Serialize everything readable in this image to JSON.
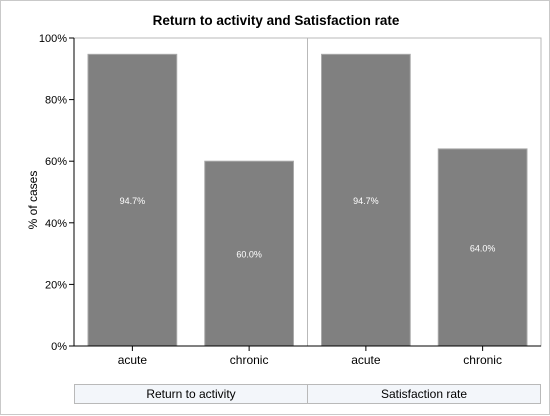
{
  "chart_data": {
    "type": "bar",
    "title": "Return to activity and Satisfaction rate",
    "ylabel": "% of cases",
    "xlabel": "",
    "ylim": [
      0,
      100
    ],
    "yticks": [
      "0%",
      "20%",
      "40%",
      "60%",
      "80%",
      "100%"
    ],
    "groups": [
      {
        "name": "Return to activity",
        "categories": [
          "acute",
          "chronic"
        ],
        "values": [
          94.7,
          60.0
        ],
        "labels": [
          "94.7%",
          "60.0%"
        ]
      },
      {
        "name": "Satisfaction rate",
        "categories": [
          "acute",
          "chronic"
        ],
        "values": [
          94.7,
          64.0
        ],
        "labels": [
          "94.7%",
          "64.0%"
        ]
      }
    ],
    "colors": {
      "bar": "#808080",
      "bar_edge": "#a9a9a9",
      "grid": "#000000"
    },
    "grid": false
  }
}
